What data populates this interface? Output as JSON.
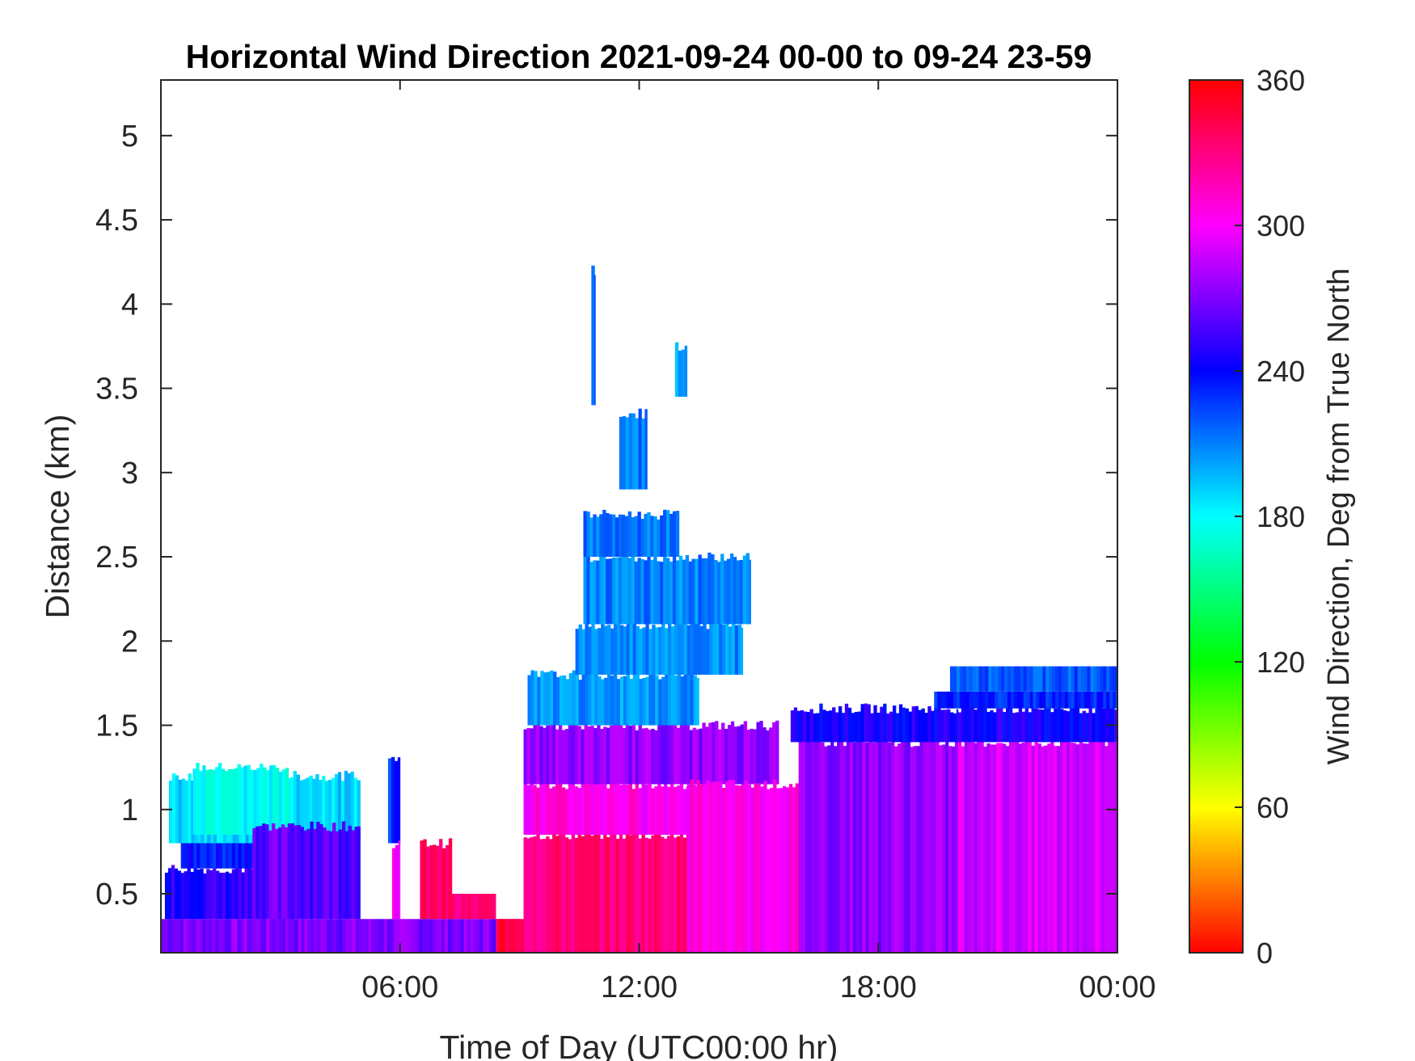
{
  "chart_data": {
    "type": "heatmap",
    "title": "Horizontal Wind Direction 2021-09-24 00-00 to 09-24 23-59",
    "xlabel": "Time of Day (UTC00:00 hr)",
    "ylabel": "Distance (km)",
    "xlim_hours": [
      0,
      24
    ],
    "ylim_km": [
      0.15,
      5.33
    ],
    "x_ticks": [
      {
        "hour": 6,
        "label": "06:00"
      },
      {
        "hour": 12,
        "label": "12:00"
      },
      {
        "hour": 18,
        "label": "18:00"
      },
      {
        "hour": 24,
        "label": "00:00"
      }
    ],
    "y_ticks": [
      {
        "value": 0.5,
        "label": "0.5"
      },
      {
        "value": 1,
        "label": "1"
      },
      {
        "value": 1.5,
        "label": "1.5"
      },
      {
        "value": 2,
        "label": "2"
      },
      {
        "value": 2.5,
        "label": "2.5"
      },
      {
        "value": 3,
        "label": "3"
      },
      {
        "value": 3.5,
        "label": "3.5"
      },
      {
        "value": 4,
        "label": "4"
      },
      {
        "value": 4.5,
        "label": "4.5"
      },
      {
        "value": 5,
        "label": "5"
      }
    ],
    "colorbar": {
      "label": "Wind Direction, Deg from True North",
      "range": [
        0,
        360
      ],
      "ticks": [
        {
          "value": 0,
          "label": "0"
        },
        {
          "value": 60,
          "label": "60"
        },
        {
          "value": 120,
          "label": "120"
        },
        {
          "value": 180,
          "label": "180"
        },
        {
          "value": 240,
          "label": "240"
        },
        {
          "value": 300,
          "label": "300"
        },
        {
          "value": 360,
          "label": "360"
        }
      ],
      "colormap": [
        "#ff0000",
        "#ffff00",
        "#00ff00",
        "#00ffff",
        "#0000ff",
        "#ff00ff",
        "#ff0000"
      ]
    },
    "regions": [
      {
        "t0": 0.0,
        "t1": 9.0,
        "z0": 0.15,
        "z1": 0.35,
        "deg": 270
      },
      {
        "t0": 0.1,
        "t1": 3.3,
        "z0": 0.35,
        "z1": 0.65,
        "deg": 250
      },
      {
        "t0": 0.5,
        "t1": 3.3,
        "z0": 0.65,
        "z1": 0.8,
        "deg": 235
      },
      {
        "t0": 0.2,
        "t1": 5.0,
        "z0": 0.8,
        "z1": 1.2,
        "deg": 190
      },
      {
        "t0": 0.8,
        "t1": 3.2,
        "z0": 0.85,
        "z1": 1.25,
        "deg": 180
      },
      {
        "t0": 2.3,
        "t1": 5.0,
        "z0": 0.35,
        "z1": 0.9,
        "deg": 262
      },
      {
        "t0": 5.7,
        "t1": 6.0,
        "z0": 0.8,
        "z1": 1.3,
        "deg": 230
      },
      {
        "t0": 5.8,
        "t1": 6.0,
        "z0": 0.35,
        "z1": 0.8,
        "deg": 300
      },
      {
        "t0": 6.5,
        "t1": 7.3,
        "z0": 0.35,
        "z1": 0.8,
        "deg": 335
      },
      {
        "t0": 7.3,
        "t1": 8.4,
        "z0": 0.35,
        "z1": 0.5,
        "deg": 330
      },
      {
        "t0": 8.4,
        "t1": 9.1,
        "z0": 0.15,
        "z1": 0.35,
        "deg": 345
      },
      {
        "t0": 9.1,
        "t1": 13.2,
        "z0": 0.15,
        "z1": 0.85,
        "deg": 332
      },
      {
        "t0": 9.1,
        "t1": 14.0,
        "z0": 0.85,
        "z1": 1.15,
        "deg": 305
      },
      {
        "t0": 9.1,
        "t1": 15.5,
        "z0": 1.15,
        "z1": 1.5,
        "deg": 275
      },
      {
        "t0": 13.2,
        "t1": 16.0,
        "z0": 0.15,
        "z1": 1.15,
        "deg": 305
      },
      {
        "t0": 16.0,
        "t1": 20.0,
        "z0": 0.15,
        "z1": 1.4,
        "deg": 275
      },
      {
        "t0": 15.8,
        "t1": 20.0,
        "z0": 1.4,
        "z1": 1.6,
        "deg": 245
      },
      {
        "t0": 20.0,
        "t1": 24.0,
        "z0": 0.15,
        "z1": 1.4,
        "deg": 290
      },
      {
        "t0": 20.0,
        "t1": 24.0,
        "z0": 1.4,
        "z1": 1.6,
        "deg": 245
      },
      {
        "t0": 19.4,
        "t1": 24.0,
        "z0": 1.6,
        "z1": 1.7,
        "deg": 232
      },
      {
        "t0": 19.8,
        "t1": 24.0,
        "z0": 1.7,
        "z1": 1.85,
        "deg": 220
      },
      {
        "t0": 9.2,
        "t1": 13.5,
        "z0": 1.5,
        "z1": 1.8,
        "deg": 205
      },
      {
        "t0": 10.4,
        "t1": 14.6,
        "z0": 1.8,
        "z1": 2.1,
        "deg": 208
      },
      {
        "t0": 10.6,
        "t1": 14.8,
        "z0": 2.1,
        "z1": 2.5,
        "deg": 210
      },
      {
        "t0": 10.6,
        "t1": 13.0,
        "z0": 2.5,
        "z1": 2.75,
        "deg": 212
      },
      {
        "t0": 11.5,
        "t1": 12.2,
        "z0": 2.9,
        "z1": 3.35,
        "deg": 212
      },
      {
        "t0": 12.9,
        "t1": 13.2,
        "z0": 3.45,
        "z1": 3.75,
        "deg": 200
      },
      {
        "t0": 10.8,
        "t1": 10.9,
        "z0": 3.4,
        "z1": 4.2,
        "deg": 215
      }
    ]
  }
}
